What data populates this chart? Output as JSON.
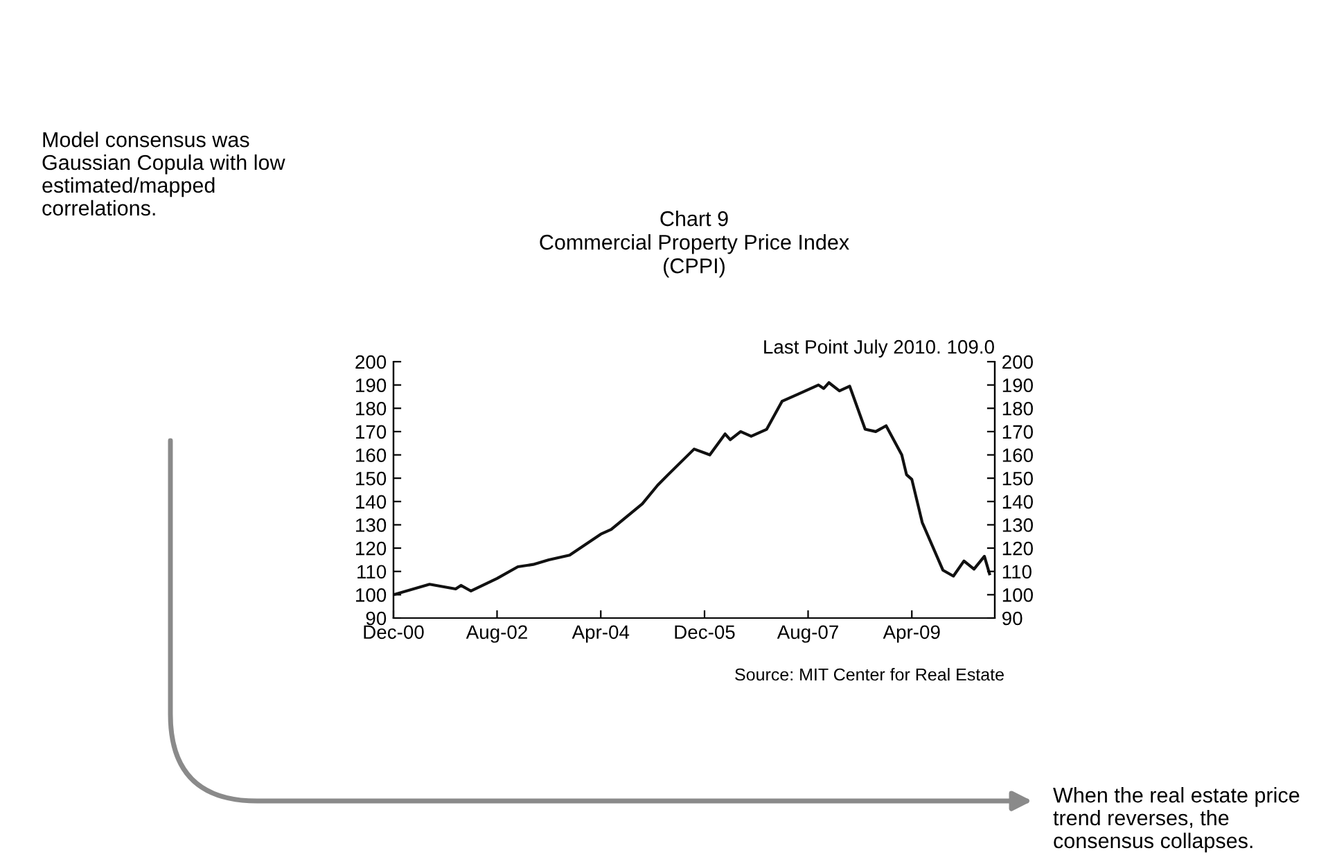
{
  "chart_data": {
    "type": "line",
    "title": "Chart 9\nCommercial Property Price Index\n(CPPI)",
    "annotations": [
      "Last Point July 2010. 109.0",
      "Source: MIT Center for Real Estate",
      "Model consensus was\nGaussian Copula with low\nestimated/mapped\ncorrelations.",
      "When the real estate price\ntrend reverses, the\nconsensus collapses."
    ],
    "x": [
      "2000-12",
      "2001-07",
      "2001-12",
      "2002-01",
      "2002-03",
      "2002-08",
      "2002-12",
      "2003-03",
      "2003-06",
      "2003-10",
      "2004-04",
      "2004-06",
      "2004-12",
      "2005-03",
      "2005-05",
      "2005-10",
      "2006-01",
      "2006-04",
      "2006-05",
      "2006-07",
      "2006-09",
      "2006-12",
      "2007-03",
      "2007-06",
      "2007-10",
      "2007-11",
      "2007-12",
      "2008-02",
      "2008-04",
      "2008-07",
      "2008-09",
      "2008-11",
      "2009-02",
      "2009-03",
      "2009-04",
      "2009-06",
      "2009-10",
      "2009-12",
      "2010-02",
      "2010-04",
      "2010-06",
      "2010-07"
    ],
    "series": [
      {
        "color": "#111111",
        "values": [
          100,
          104.5,
          102.5,
          104,
          101.6,
          107,
          112,
          113,
          115,
          117,
          126,
          128,
          139,
          147,
          151.5,
          162.5,
          160,
          169,
          166.5,
          170,
          168,
          171,
          183,
          186,
          190,
          188.5,
          191,
          187.5,
          189.5,
          171,
          170,
          172.5,
          160,
          151.5,
          149.5,
          131,
          110.5,
          108,
          114.5,
          111,
          116.5,
          109
        ]
      }
    ],
    "xlim": [
      "2000-12",
      "2010-08"
    ],
    "xticks": [
      {
        "value": "2000-12",
        "label": "Dec-00"
      },
      {
        "value": "2002-08",
        "label": "Aug-02"
      },
      {
        "value": "2004-04",
        "label": "Apr-04"
      },
      {
        "value": "2005-12",
        "label": "Dec-05"
      },
      {
        "value": "2007-08",
        "label": "Aug-07"
      },
      {
        "value": "2009-04",
        "label": "Apr-09"
      }
    ],
    "ylim": [
      90,
      200
    ],
    "yticks": [
      90,
      100,
      110,
      120,
      130,
      140,
      150,
      160,
      170,
      180,
      190,
      200
    ],
    "y2lim": [
      90,
      200
    ],
    "y2ticks": [
      90,
      100,
      110,
      120,
      130,
      140,
      150,
      160,
      170,
      180,
      190,
      200
    ],
    "grid": false,
    "legend": false,
    "marker": "none",
    "line_style": "solid"
  }
}
